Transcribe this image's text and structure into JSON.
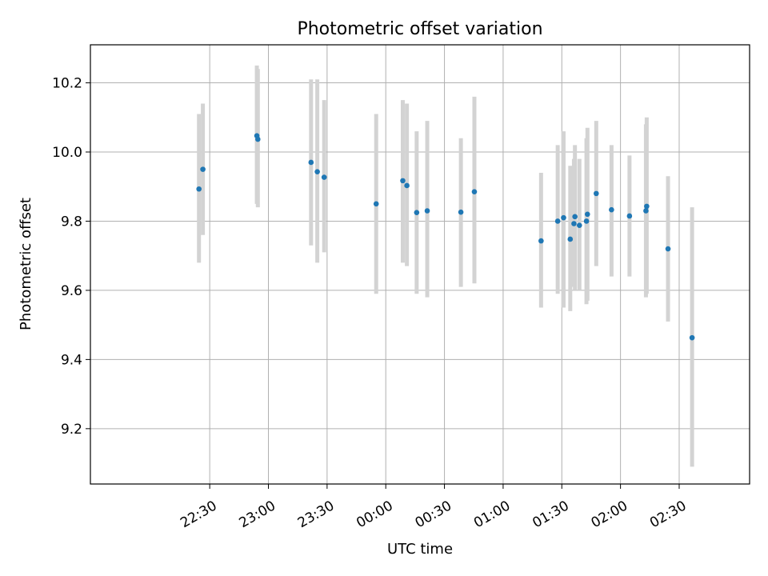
{
  "chart_data": {
    "type": "scatter",
    "title": "Photometric offset variation",
    "xlabel": "UTC time",
    "ylabel": "Photometric offset",
    "x_format": "UTC time, minutes after 22:00 on the first day (22:30 = 30, 00:00 = 120)",
    "xlim": [
      -31,
      306
    ],
    "ylim": [
      9.04,
      10.31
    ],
    "xticks": [
      {
        "label": "22:30",
        "value": 30
      },
      {
        "label": "23:00",
        "value": 60
      },
      {
        "label": "23:30",
        "value": 90
      },
      {
        "label": "00:00",
        "value": 120
      },
      {
        "label": "00:30",
        "value": 150
      },
      {
        "label": "01:00",
        "value": 180
      },
      {
        "label": "01:30",
        "value": 210
      },
      {
        "label": "02:00",
        "value": 240
      },
      {
        "label": "02:30",
        "value": 270
      }
    ],
    "yticks": [
      {
        "label": "9.2",
        "value": 9.2
      },
      {
        "label": "9.4",
        "value": 9.4
      },
      {
        "label": "9.6",
        "value": 9.6
      },
      {
        "label": "9.8",
        "value": 9.8
      },
      {
        "label": "10.0",
        "value": 10.0
      },
      {
        "label": "10.2",
        "value": 10.2
      }
    ],
    "grid": true,
    "colors": {
      "point": "#1f77b4",
      "errorbar": "#d3d3d3",
      "grid": "#b0b0b0"
    },
    "points": [
      {
        "x": 24.5,
        "y": 9.893,
        "ylow": 9.68,
        "yhigh": 10.11
      },
      {
        "x": 26.5,
        "y": 9.95,
        "ylow": 9.76,
        "yhigh": 10.14
      },
      {
        "x": 54.1,
        "y": 10.047,
        "ylow": 9.85,
        "yhigh": 10.25
      },
      {
        "x": 54.6,
        "y": 10.037,
        "ylow": 9.84,
        "yhigh": 10.24
      },
      {
        "x": 81.8,
        "y": 9.97,
        "ylow": 9.73,
        "yhigh": 10.21
      },
      {
        "x": 85.0,
        "y": 9.943,
        "ylow": 9.68,
        "yhigh": 10.21
      },
      {
        "x": 88.5,
        "y": 9.927,
        "ylow": 9.71,
        "yhigh": 10.15
      },
      {
        "x": 115.1,
        "y": 9.85,
        "ylow": 9.59,
        "yhigh": 10.11
      },
      {
        "x": 128.7,
        "y": 9.917,
        "ylow": 9.68,
        "yhigh": 10.15
      },
      {
        "x": 130.8,
        "y": 9.903,
        "ylow": 9.67,
        "yhigh": 10.14
      },
      {
        "x": 135.8,
        "y": 9.825,
        "ylow": 9.59,
        "yhigh": 10.06
      },
      {
        "x": 141.2,
        "y": 9.83,
        "ylow": 9.58,
        "yhigh": 10.09
      },
      {
        "x": 158.4,
        "y": 9.826,
        "ylow": 9.61,
        "yhigh": 10.04
      },
      {
        "x": 165.3,
        "y": 9.885,
        "ylow": 9.62,
        "yhigh": 10.16
      },
      {
        "x": 199.4,
        "y": 9.743,
        "ylow": 9.55,
        "yhigh": 9.94
      },
      {
        "x": 207.9,
        "y": 9.8,
        "ylow": 9.59,
        "yhigh": 10.02
      },
      {
        "x": 210.9,
        "y": 9.81,
        "ylow": 9.55,
        "yhigh": 10.06
      },
      {
        "x": 214.3,
        "y": 9.748,
        "ylow": 9.54,
        "yhigh": 9.96
      },
      {
        "x": 216.2,
        "y": 9.793,
        "ylow": 9.61,
        "yhigh": 9.98
      },
      {
        "x": 216.7,
        "y": 9.813,
        "ylow": 9.6,
        "yhigh": 10.02
      },
      {
        "x": 219.0,
        "y": 9.788,
        "ylow": 9.6,
        "yhigh": 9.98
      },
      {
        "x": 222.6,
        "y": 9.8,
        "ylow": 9.56,
        "yhigh": 10.04
      },
      {
        "x": 223.1,
        "y": 9.82,
        "ylow": 9.57,
        "yhigh": 10.07
      },
      {
        "x": 227.6,
        "y": 9.88,
        "ylow": 9.67,
        "yhigh": 10.09
      },
      {
        "x": 235.4,
        "y": 9.833,
        "ylow": 9.64,
        "yhigh": 10.02
      },
      {
        "x": 244.6,
        "y": 9.815,
        "ylow": 9.64,
        "yhigh": 9.99
      },
      {
        "x": 253.0,
        "y": 9.83,
        "ylow": 9.58,
        "yhigh": 10.08
      },
      {
        "x": 253.4,
        "y": 9.843,
        "ylow": 9.59,
        "yhigh": 10.1
      },
      {
        "x": 264.3,
        "y": 9.72,
        "ylow": 9.51,
        "yhigh": 9.93
      },
      {
        "x": 276.6,
        "y": 9.463,
        "ylow": 9.09,
        "yhigh": 9.84
      }
    ]
  }
}
